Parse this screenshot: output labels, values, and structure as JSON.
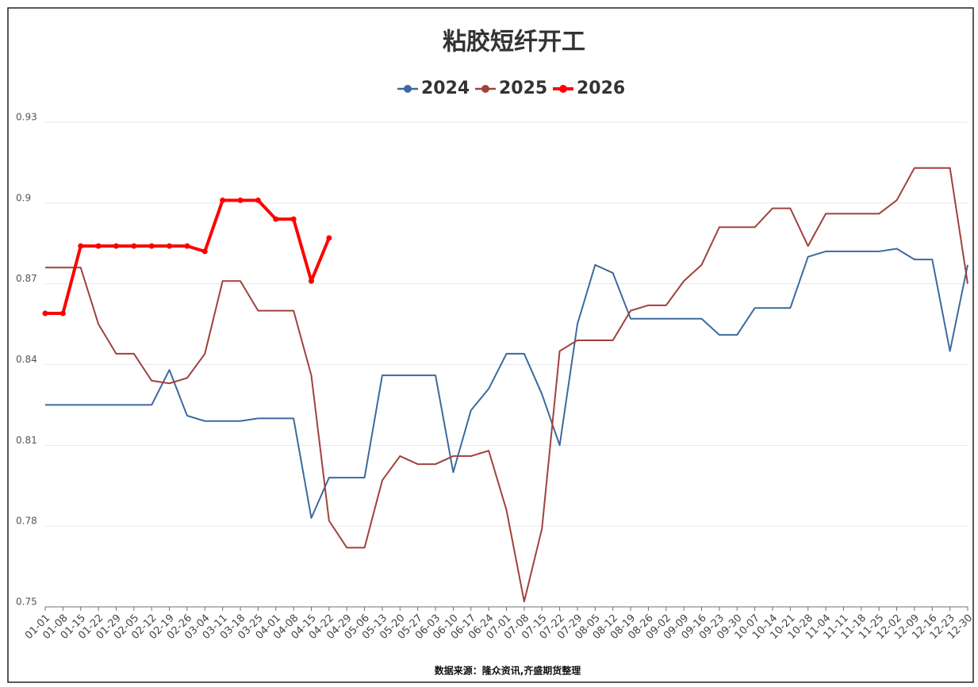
{
  "chart_data": {
    "type": "line",
    "title": "粘胶短纤开工",
    "source": "数据来源：隆众资讯,齐盛期货整理",
    "categories": [
      "01-01",
      "01-08",
      "01-15",
      "01-22",
      "01-29",
      "02-05",
      "02-12",
      "02-19",
      "02-26",
      "03-04",
      "03-11",
      "03-18",
      "03-25",
      "04-01",
      "04-08",
      "04-15",
      "04-22",
      "04-29",
      "05-06",
      "05-13",
      "05-20",
      "05-27",
      "06-03",
      "06-10",
      "06-17",
      "06-24",
      "07-01",
      "07-08",
      "07-15",
      "07-22",
      "07-29",
      "08-05",
      "08-12",
      "08-19",
      "08-26",
      "09-02",
      "09-09",
      "09-16",
      "09-23",
      "09-30",
      "10-07",
      "10-14",
      "10-21",
      "10-28",
      "11-04",
      "11-11",
      "11-18",
      "11-25",
      "12-02",
      "12-09",
      "12-16",
      "12-23",
      "12-30"
    ],
    "series": [
      {
        "name": "2024",
        "color": "#3d6a9e",
        "values": [
          0.825,
          0.825,
          0.825,
          0.825,
          0.825,
          0.825,
          0.825,
          0.838,
          0.821,
          0.819,
          0.819,
          0.819,
          0.82,
          0.82,
          0.82,
          0.783,
          0.798,
          0.798,
          0.798,
          0.836,
          0.836,
          0.836,
          0.836,
          0.8,
          0.823,
          0.831,
          0.844,
          0.844,
          0.829,
          0.81,
          0.855,
          0.877,
          0.874,
          0.857,
          0.857,
          0.857,
          0.857,
          0.857,
          0.851,
          0.851,
          0.861,
          0.861,
          0.861,
          0.88,
          0.882,
          0.882,
          0.882,
          0.882,
          0.883,
          0.879,
          0.879,
          0.845,
          0.877
        ]
      },
      {
        "name": "2025",
        "color": "#a0413d",
        "values": [
          0.876,
          0.876,
          0.876,
          0.855,
          0.844,
          0.844,
          0.834,
          0.833,
          0.835,
          0.844,
          0.871,
          0.871,
          0.86,
          0.86,
          0.86,
          0.836,
          0.782,
          0.772,
          0.772,
          0.797,
          0.806,
          0.803,
          0.803,
          0.806,
          0.806,
          0.808,
          0.786,
          0.752,
          0.779,
          0.845,
          0.849,
          0.849,
          0.849,
          0.86,
          0.862,
          0.862,
          0.871,
          0.877,
          0.891,
          0.891,
          0.891,
          0.898,
          0.898,
          0.884,
          0.896,
          0.896,
          0.896,
          0.896,
          0.901,
          0.913,
          0.913,
          0.913,
          0.87
        ]
      },
      {
        "name": "2026",
        "color": "#ff0000",
        "values": [
          0.859,
          0.859,
          0.884,
          0.884,
          0.884,
          0.884,
          0.884,
          0.884,
          0.884,
          0.882,
          0.901,
          0.901,
          0.901,
          0.894,
          0.894,
          0.871,
          0.887,
          null,
          null,
          null,
          null,
          null,
          null,
          null,
          null,
          null,
          null,
          null,
          null,
          null,
          null,
          null,
          null,
          null,
          null,
          null,
          null,
          null,
          null,
          null,
          null,
          null,
          null,
          null,
          null,
          null,
          null,
          null,
          null,
          null,
          null,
          null,
          null
        ]
      }
    ],
    "ylim": [
      0.75,
      0.93
    ],
    "yticks": [
      0.75,
      0.78,
      0.81,
      0.84,
      0.87,
      0.9,
      0.93
    ],
    "grid": true,
    "legend": "top"
  }
}
